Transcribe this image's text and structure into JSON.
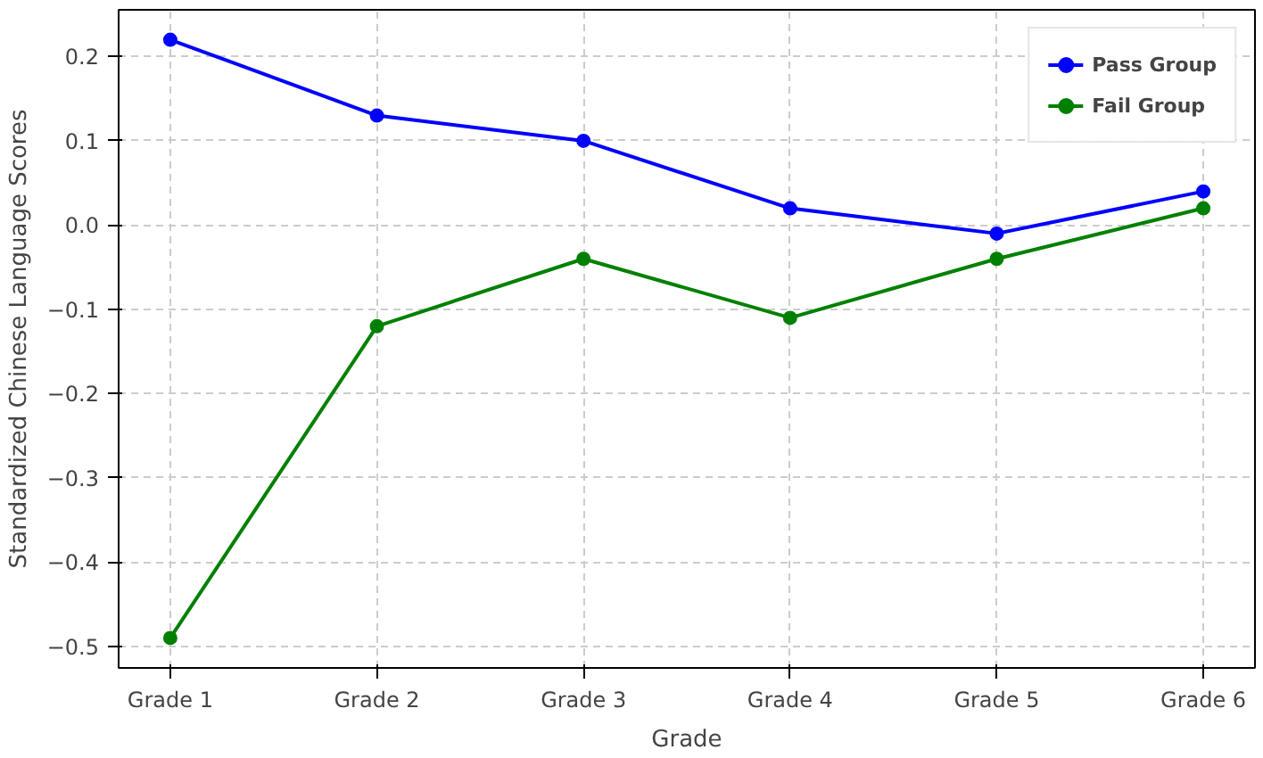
{
  "chart_data": {
    "type": "line",
    "xlabel": "Grade",
    "ylabel": "Standardized Chinese Language Scores",
    "categories": [
      "Grade 1",
      "Grade 2",
      "Grade 3",
      "Grade 4",
      "Grade 5",
      "Grade 6"
    ],
    "series": [
      {
        "name": "Pass Group",
        "color": "#0000ff",
        "values": [
          0.22,
          0.13,
          0.1,
          0.02,
          -0.01,
          0.04
        ]
      },
      {
        "name": "Fail Group",
        "color": "#008000",
        "values": [
          -0.49,
          -0.12,
          -0.04,
          -0.11,
          -0.04,
          0.02
        ]
      }
    ],
    "ylim": [
      -0.5255,
      0.2555
    ],
    "yticks": [
      {
        "value": -0.5,
        "label": "−0.5"
      },
      {
        "value": -0.4,
        "label": "−0.4"
      },
      {
        "value": -0.3,
        "label": "−0.3"
      },
      {
        "value": -0.2,
        "label": "−0.2"
      },
      {
        "value": -0.1,
        "label": "−0.1"
      },
      {
        "value": 0,
        "label": "0.0"
      },
      {
        "value": 0.1,
        "label": "0.1"
      },
      {
        "value": 0.2,
        "label": "0.2"
      }
    ],
    "grid": true,
    "legend": "top right",
    "marker": "circle",
    "line_style": "solid"
  }
}
